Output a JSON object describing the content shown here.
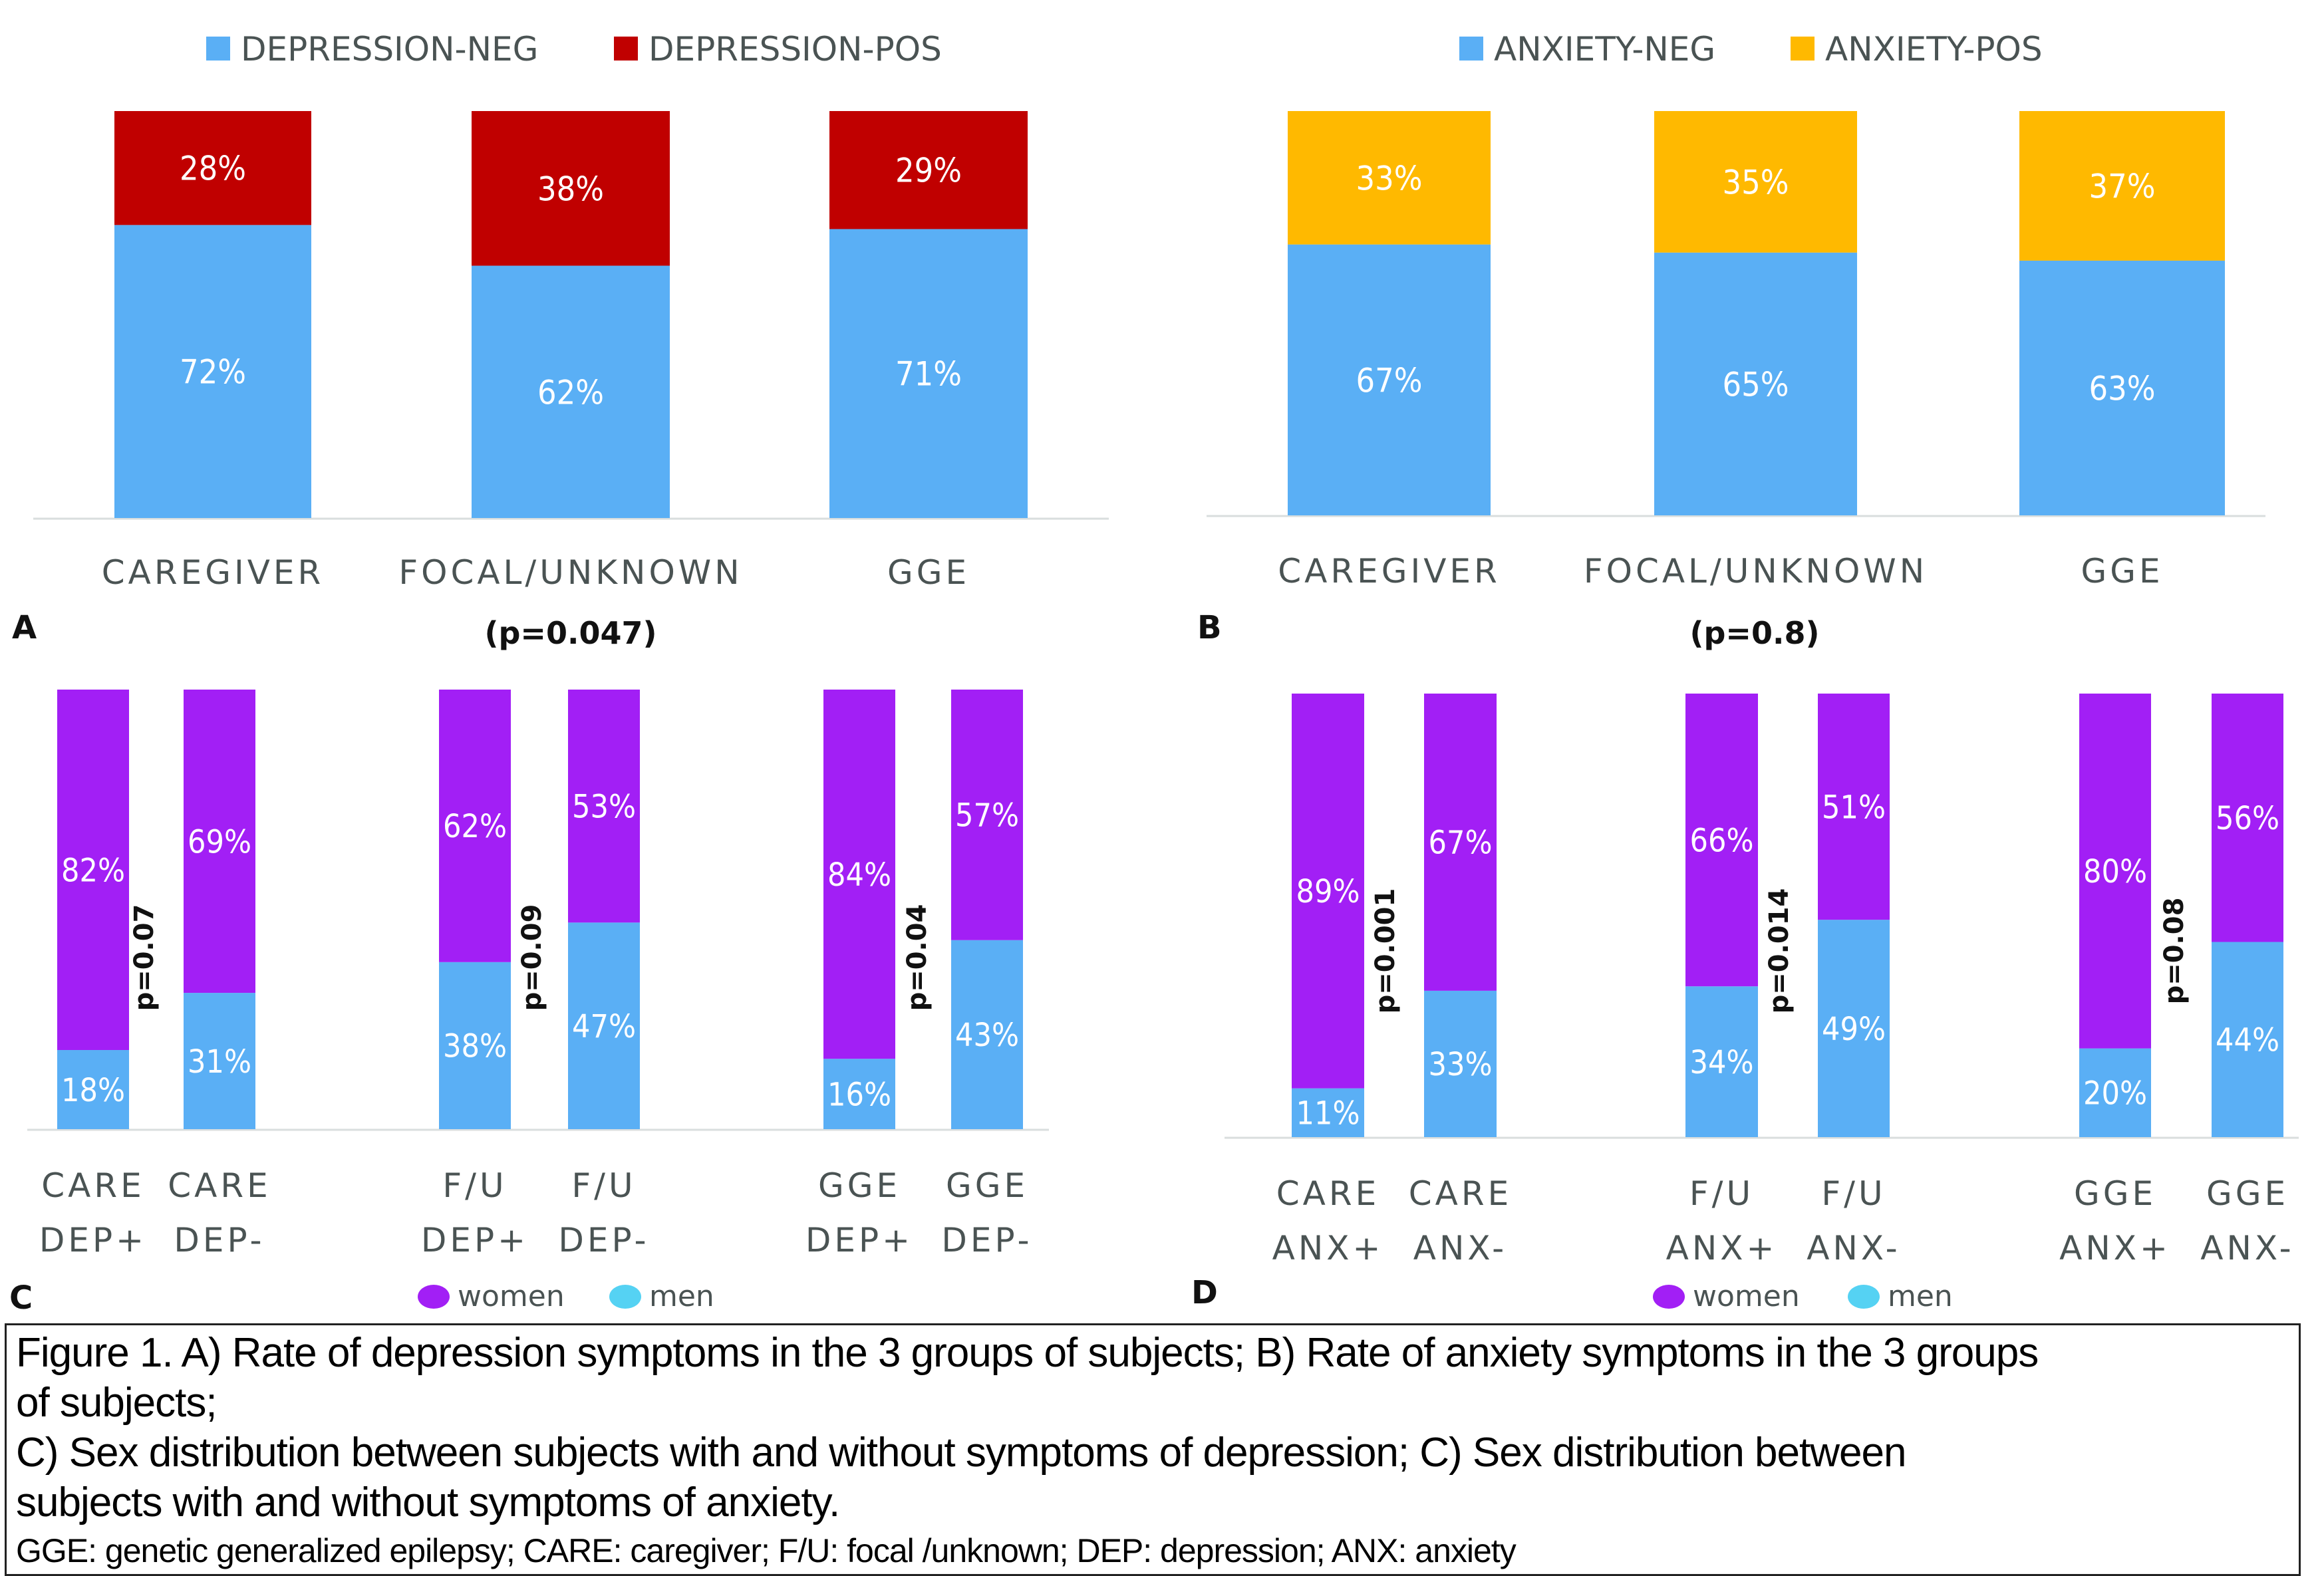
{
  "colors": {
    "neg_blue": "#5aaff5",
    "dep_pos_red": "#c00000",
    "anx_pos_yellow": "#ffb900",
    "women_purple": "#a21ff5",
    "men_blue": "#5aaff5",
    "men_legend": "#55d2f3",
    "axis_line": "#d9dede",
    "label_gray": "#4a5353"
  },
  "chart_data": [
    {
      "id": "A",
      "type": "bar",
      "stacked": true,
      "panel_label": "A",
      "categories": [
        "CAREGIVER",
        "FOCAL/UNKNOWN",
        "GGE"
      ],
      "series": [
        {
          "name": "DEPRESSION-NEG",
          "color_key": "neg_blue",
          "values": [
            72,
            62,
            71
          ],
          "labels": [
            "72%",
            "62%",
            "71%"
          ]
        },
        {
          "name": "DEPRESSION-POS",
          "color_key": "dep_pos_red",
          "values": [
            28,
            38,
            29
          ],
          "labels": [
            "28%",
            "38%",
            "29%"
          ]
        }
      ],
      "annotation": "(p=0.047)",
      "legend_position": "top",
      "ylim": [
        0,
        100
      ],
      "grid": false
    },
    {
      "id": "B",
      "type": "bar",
      "stacked": true,
      "panel_label": "B",
      "categories": [
        "CAREGIVER",
        "FOCAL/UNKNOWN",
        "GGE"
      ],
      "series": [
        {
          "name": "ANXIETY-NEG",
          "color_key": "neg_blue",
          "values": [
            67,
            65,
            63
          ],
          "labels": [
            "67%",
            "65%",
            "63%"
          ]
        },
        {
          "name": "ANXIETY-POS",
          "color_key": "anx_pos_yellow",
          "values": [
            33,
            35,
            37
          ],
          "labels": [
            "33%",
            "35%",
            "37%"
          ]
        }
      ],
      "annotation": "(p=0.8)",
      "legend_position": "top",
      "ylim": [
        0,
        100
      ],
      "grid": false
    },
    {
      "id": "C",
      "type": "bar",
      "stacked": true,
      "panel_label": "C",
      "categories": [
        [
          "CARE",
          "DEP+"
        ],
        [
          "CARE",
          "DEP-"
        ],
        [
          "F/U",
          "DEP+"
        ],
        [
          "F/U",
          "DEP-"
        ],
        [
          "GGE",
          "DEP+"
        ],
        [
          "GGE",
          "DEP-"
        ]
      ],
      "series": [
        {
          "name": "men",
          "color_key": "men_blue",
          "values": [
            18,
            31,
            38,
            47,
            16,
            43
          ],
          "labels": [
            "18%",
            "31%",
            "38%",
            "47%",
            "16%",
            "43%"
          ]
        },
        {
          "name": "women",
          "color_key": "women_purple",
          "values": [
            82,
            69,
            62,
            53,
            84,
            57
          ],
          "labels": [
            "82%",
            "69%",
            "62%",
            "53%",
            "84%",
            "57%"
          ]
        }
      ],
      "p_values": [
        "p=0.07",
        "p=0.09",
        "p=0.04"
      ],
      "legend": [
        {
          "name": "women",
          "color_key": "women_purple"
        },
        {
          "name": "men",
          "color_key": "men_legend"
        }
      ],
      "legend_position": "bottom",
      "ylim": [
        0,
        100
      ],
      "grid": false
    },
    {
      "id": "D",
      "type": "bar",
      "stacked": true,
      "panel_label": "D",
      "categories": [
        [
          "CARE",
          "ANX+"
        ],
        [
          "CARE",
          "ANX-"
        ],
        [
          "F/U",
          "ANX+"
        ],
        [
          "F/U",
          "ANX-"
        ],
        [
          "GGE",
          "ANX+"
        ],
        [
          "GGE",
          "ANX-"
        ]
      ],
      "series": [
        {
          "name": "men",
          "color_key": "men_blue",
          "values": [
            11,
            33,
            34,
            49,
            20,
            44
          ],
          "labels": [
            "11%",
            "33%",
            "34%",
            "49%",
            "20%",
            "44%"
          ]
        },
        {
          "name": "women",
          "color_key": "women_purple",
          "values": [
            89,
            67,
            66,
            51,
            80,
            56
          ],
          "labels": [
            "89%",
            "67%",
            "66%",
            "51%",
            "80%",
            "56%"
          ]
        }
      ],
      "p_values": [
        "p=0.001",
        "p=0.014",
        "p=0.08"
      ],
      "legend": [
        {
          "name": "women",
          "color_key": "women_purple"
        },
        {
          "name": "men",
          "color_key": "men_legend"
        }
      ],
      "legend_position": "bottom",
      "ylim": [
        0,
        100
      ],
      "grid": false
    }
  ],
  "caption": {
    "lines": [
      "Figure 1. A) Rate of depression symptoms in the 3 groups of subjects; B) Rate of anxiety symptoms in the 3 groups",
      "of subjects;",
      "C) Sex distribution between subjects with and without symptoms of depression; C) Sex distribution between",
      "subjects with and without symptoms of anxiety."
    ],
    "abbreviations": "GGE: genetic generalized epilepsy; CARE: caregiver; F/U: focal /unknown; DEP: depression; ANX: anxiety"
  }
}
